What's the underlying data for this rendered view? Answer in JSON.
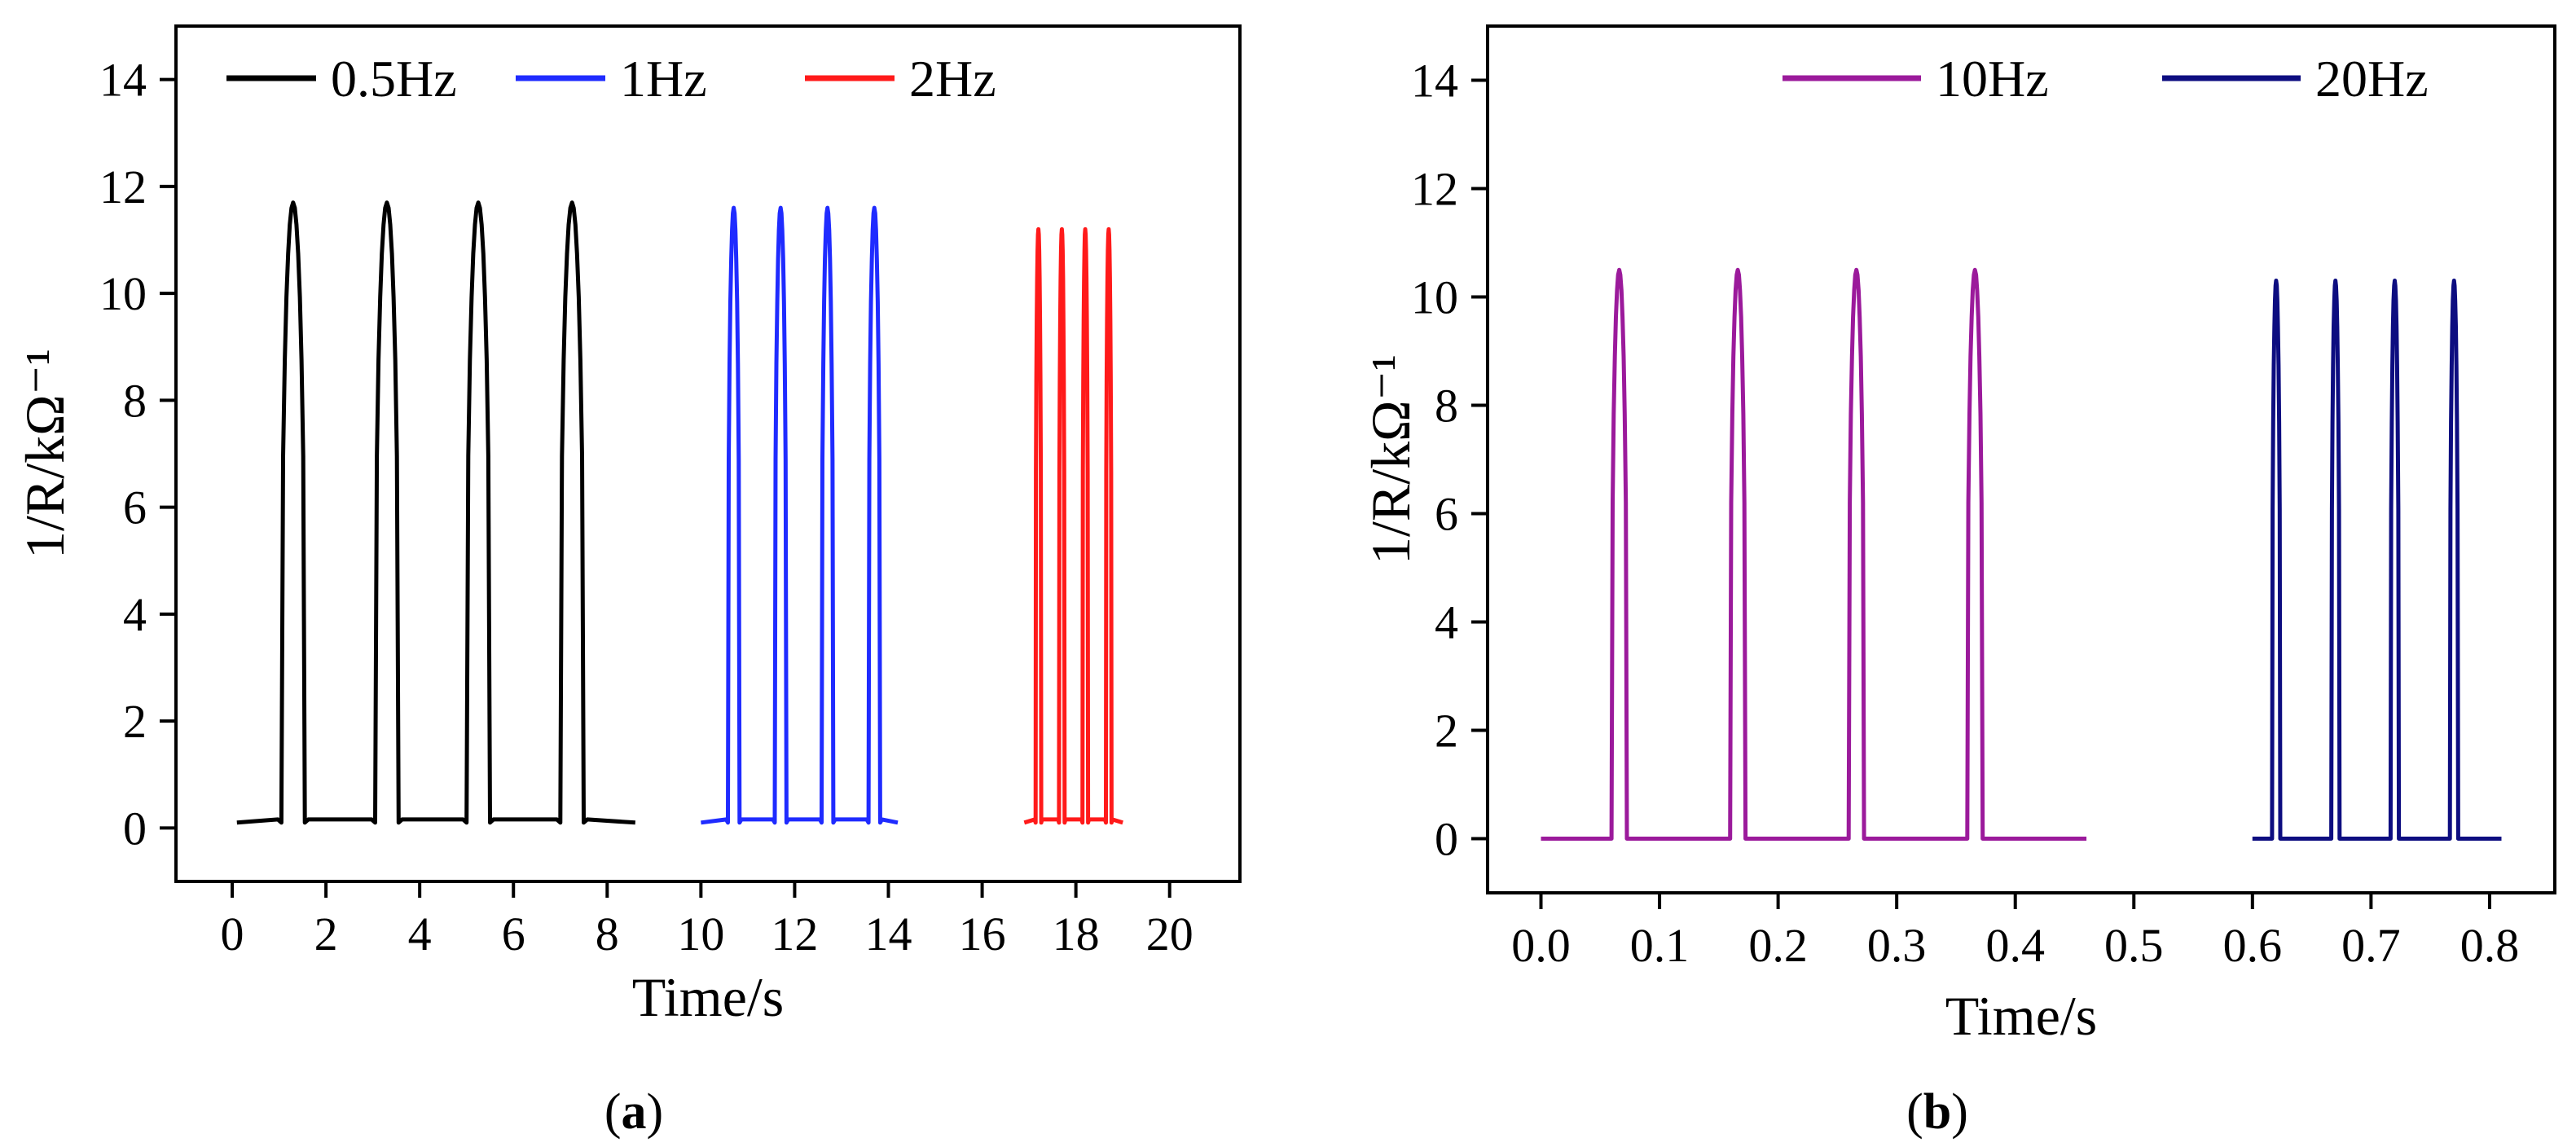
{
  "chart_data": [
    {
      "type": "line",
      "panel_label": "a",
      "xlabel": "Time/s",
      "ylabel": "1/R/kΩ⁻¹",
      "xlim": [
        -1.2,
        21.5
      ],
      "ylim": [
        -1,
        15
      ],
      "xticks": [
        0,
        2,
        4,
        6,
        8,
        10,
        12,
        14,
        16,
        18,
        20
      ],
      "yticks": [
        0,
        2,
        4,
        6,
        8,
        10,
        12,
        14
      ],
      "legend_position": "top-left",
      "series": [
        {
          "name": "0.5Hz",
          "color": "#000000",
          "baseline": 0.1,
          "peak": 11.7,
          "peak_times": [
            1.3,
            3.3,
            5.25,
            7.25
          ],
          "pulse_width": 0.5,
          "x_range": [
            0.1,
            8.6
          ]
        },
        {
          "name": "1Hz",
          "color": "#1f2bff",
          "baseline": 0.1,
          "peak": 11.6,
          "peak_times": [
            10.7,
            11.7,
            12.7,
            13.7
          ],
          "pulse_width": 0.25,
          "x_range": [
            10.0,
            14.2
          ]
        },
        {
          "name": "2Hz",
          "color": "#ff1a1a",
          "baseline": 0.1,
          "peak": 11.2,
          "peak_times": [
            17.2,
            17.7,
            18.2,
            18.7
          ],
          "pulse_width": 0.12,
          "x_range": [
            16.9,
            19.0
          ]
        }
      ]
    },
    {
      "type": "line",
      "panel_label": "b",
      "xlabel": "Time/s",
      "ylabel": "1/R/kΩ⁻¹",
      "xlim": [
        -0.045,
        0.855
      ],
      "ylim": [
        -1,
        15
      ],
      "xticks": [
        0.0,
        0.1,
        0.2,
        0.3,
        0.4,
        0.5,
        0.6,
        0.7,
        0.8
      ],
      "xtick_labels": [
        "0.0",
        "0.1",
        "0.2",
        "0.3",
        "0.4",
        "0.5",
        "0.6",
        "0.7",
        "0.8"
      ],
      "yticks": [
        0,
        2,
        4,
        6,
        8,
        10,
        12,
        14
      ],
      "legend_position": "top-right",
      "series": [
        {
          "name": "10Hz",
          "color": "#9b1a9b",
          "baseline": 0.0,
          "peak": 10.5,
          "peak_times": [
            0.066,
            0.166,
            0.266,
            0.366
          ],
          "pulse_width": 0.013,
          "x_range": [
            0.0,
            0.46
          ]
        },
        {
          "name": "20Hz",
          "color": "#0d0d80",
          "baseline": 0.0,
          "peak": 10.3,
          "peak_times": [
            0.62,
            0.67,
            0.72,
            0.77
          ],
          "pulse_width": 0.007,
          "x_range": [
            0.6,
            0.81
          ]
        }
      ]
    }
  ],
  "captions": {
    "a": {
      "open": "(",
      "letter": "a",
      "close": ")"
    },
    "b": {
      "open": "(",
      "letter": "b",
      "close": ")"
    }
  }
}
